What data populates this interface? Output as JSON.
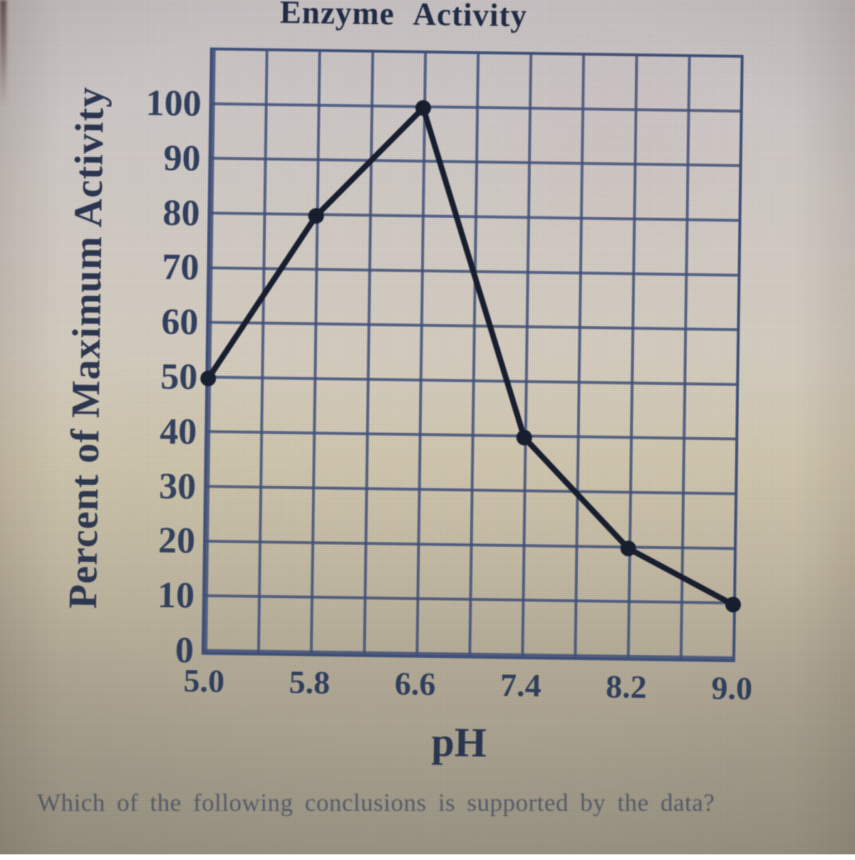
{
  "page": {
    "question_text": "Which of the following conclusions is supported by the data?"
  },
  "chart_data": {
    "type": "line",
    "title": "Enzyme Activity",
    "xlabel": "pH",
    "ylabel": "Percent of Maximum Activity",
    "x": [
      5.0,
      5.8,
      6.6,
      7.4,
      8.2,
      9.0
    ],
    "values": [
      50,
      80,
      100,
      40,
      20,
      10
    ],
    "xlim": [
      5.0,
      9.0
    ],
    "ylim": [
      0,
      110
    ],
    "x_ticks": [
      5.0,
      5.8,
      6.6,
      7.4,
      8.2,
      9.0
    ],
    "x_tick_labels": [
      "5.0",
      "5.8",
      "6.6",
      "7.4",
      "8.2",
      "9.0"
    ],
    "y_ticks": [
      100,
      90,
      80,
      70,
      60,
      50,
      40,
      30,
      20,
      10,
      0
    ],
    "y_tick_labels": [
      "100",
      "90",
      "80",
      "70",
      "60",
      "50",
      "40",
      "30",
      "20",
      "10",
      "0"
    ],
    "x_minor_gridline_step": 0.4,
    "y_gridline_step": 10,
    "grid": "on",
    "legend": "none",
    "colors": {
      "grid_line": "#3e4f7a",
      "data_line": "#161d2e",
      "tick_text": "#2f3e5e",
      "title_text": "#1f2a45",
      "axis_label_text": "#2a3550"
    }
  }
}
